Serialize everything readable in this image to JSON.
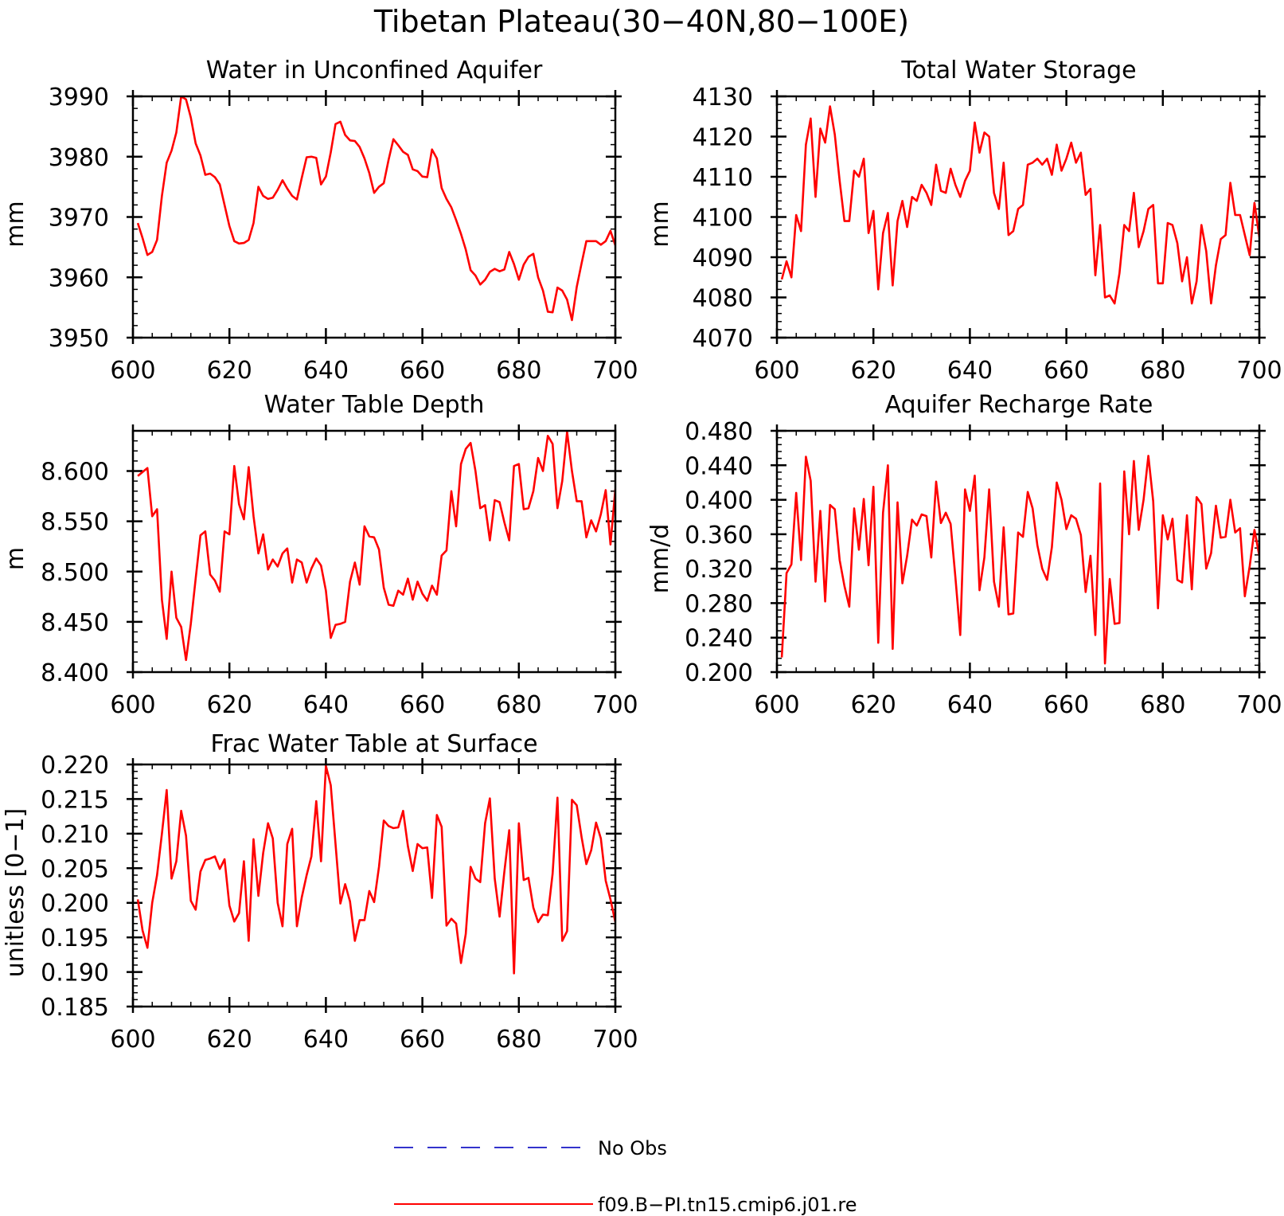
{
  "figure": {
    "title": "Tibetan Plateau(30−40N,80−100E)"
  },
  "legend": {
    "entries": [
      {
        "label": "No Obs",
        "color": "#3333cc",
        "style": "dashed"
      },
      {
        "label": "f09.B−PI.tn15.cmip6.j01.re",
        "color": "#ff0000",
        "style": "solid"
      }
    ]
  },
  "chart_data": [
    {
      "type": "line",
      "title": "Water in Unconfined Aquifer",
      "ylabel": "mm",
      "xlim": [
        600,
        700
      ],
      "ylim": [
        3950,
        3990
      ],
      "xticks": [
        600,
        620,
        640,
        660,
        680,
        700
      ],
      "yticks": [
        3950,
        3960,
        3970,
        3980,
        3990
      ],
      "ytick_labels": [
        "3950",
        "3960",
        "3970",
        "3980",
        "3990"
      ],
      "series": [
        {
          "name": "f09.B−PI.tn15.cmip6.j01.re",
          "color": "#ff0000",
          "x_start": 601,
          "values": [
            3969,
            3966.5,
            3963.7,
            3964.2,
            3966.2,
            3973.5,
            3979,
            3981,
            3984,
            3990,
            3989.5,
            3986.5,
            3982.2,
            3980.2,
            3977,
            3977.2,
            3976.6,
            3975.4,
            3972,
            3968.5,
            3966,
            3965.6,
            3965.7,
            3966.2,
            3969,
            3975,
            3973.5,
            3973,
            3973.2,
            3974.5,
            3976.1,
            3974.7,
            3973.5,
            3972.9,
            3976.5,
            3979.9,
            3980,
            3979.8,
            3975.4,
            3976.7,
            3980.7,
            3985.4,
            3985.8,
            3983.6,
            3982.7,
            3982.6,
            3981.6,
            3979.7,
            3977.3,
            3974,
            3975,
            3975.6,
            3979.5,
            3982.9,
            3981.9,
            3980.8,
            3980.3,
            3977.9,
            3977.6,
            3976.7,
            3976.6,
            3981.2,
            3979.7,
            3974.8,
            3973,
            3971.6,
            3969.5,
            3967.2,
            3964.6,
            3961.2,
            3960.3,
            3958.8,
            3959.6,
            3960.9,
            3961.4,
            3961,
            3961.3,
            3964.2,
            3962.2,
            3959.6,
            3962.1,
            3963.4,
            3963.9,
            3960,
            3957.8,
            3954.3,
            3954.2,
            3958.3,
            3957.8,
            3956.3,
            3952.9,
            3958.4,
            3962.3,
            3966,
            3966,
            3966,
            3965.4,
            3966,
            3967.7,
            3965.3
          ]
        }
      ]
    },
    {
      "type": "line",
      "title": "Total Water Storage",
      "ylabel": "mm",
      "xlim": [
        600,
        700
      ],
      "ylim": [
        4070,
        4130
      ],
      "xticks": [
        600,
        620,
        640,
        660,
        680,
        700
      ],
      "yticks": [
        4070,
        4080,
        4090,
        4100,
        4110,
        4120,
        4130
      ],
      "ytick_labels": [
        "4070",
        "4080",
        "4090",
        "4100",
        "4110",
        "4120",
        "4130"
      ],
      "series": [
        {
          "name": "f09.B−PI.tn15.cmip6.j01.re",
          "color": "#ff0000",
          "x_start": 601,
          "values": [
            4084.5,
            4089,
            4085,
            4100.5,
            4096.5,
            4118,
            4124.5,
            4105,
            4122,
            4118.5,
            4127.5,
            4120.5,
            4109,
            4099,
            4099,
            4111.5,
            4110,
            4114.5,
            4096,
            4101.5,
            4082,
            4096,
            4101,
            4083,
            4099,
            4104,
            4097.5,
            4105,
            4104,
            4108,
            4106,
            4103,
            4113,
            4106.5,
            4106,
            4112,
            4108,
            4105,
            4109,
            4111.5,
            4123.5,
            4116,
            4121,
            4120,
            4106,
            4102,
            4113.5,
            4095.5,
            4096.5,
            4102,
            4103,
            4113,
            4113.5,
            4114.5,
            4113,
            4114.5,
            4110.5,
            4118,
            4111.5,
            4114.5,
            4118.5,
            4113.5,
            4116,
            4105.5,
            4107,
            4085.5,
            4098,
            4080,
            4080.5,
            4078.5,
            4086,
            4098,
            4096.5,
            4106,
            4092.5,
            4096.5,
            4102,
            4103,
            4083.5,
            4083.5,
            4098.5,
            4098,
            4093.5,
            4084,
            4090,
            4078.5,
            4084,
            4098,
            4091.5,
            4078.5,
            4088,
            4094.5,
            4095.5,
            4108.5,
            4100.5,
            4100.5,
            4095.5,
            4090.5,
            4103.5,
            4095
          ]
        }
      ]
    },
    {
      "type": "line",
      "title": "Water Table Depth",
      "ylabel": "m",
      "xlim": [
        600,
        700
      ],
      "ylim": [
        8.4,
        8.64
      ],
      "xticks": [
        600,
        620,
        640,
        660,
        680,
        700
      ],
      "yticks": [
        8.4,
        8.45,
        8.5,
        8.55,
        8.6
      ],
      "ytick_labels": [
        "8.400",
        "8.450",
        "8.500",
        "8.550",
        "8.600"
      ],
      "series": [
        {
          "name": "f09.B−PI.tn15.cmip6.j01.re",
          "color": "#ff0000",
          "x_start": 601,
          "values": [
            8.595,
            8.599,
            8.603,
            8.555,
            8.562,
            8.472,
            8.433,
            8.5,
            8.454,
            8.445,
            8.412,
            8.448,
            8.493,
            8.536,
            8.54,
            8.497,
            8.491,
            8.48,
            8.54,
            8.537,
            8.605,
            8.567,
            8.552,
            8.604,
            8.555,
            8.518,
            8.537,
            8.502,
            8.512,
            8.505,
            8.518,
            8.523,
            8.489,
            8.512,
            8.509,
            8.489,
            8.503,
            8.513,
            8.506,
            8.481,
            8.434,
            8.447,
            8.448,
            8.45,
            8.49,
            8.509,
            8.487,
            8.545,
            8.535,
            8.534,
            8.522,
            8.484,
            8.467,
            8.466,
            8.481,
            8.477,
            8.493,
            8.472,
            8.49,
            8.478,
            8.471,
            8.486,
            8.477,
            8.516,
            8.521,
            8.58,
            8.545,
            8.607,
            8.622,
            8.628,
            8.6,
            8.563,
            8.566,
            8.531,
            8.571,
            8.569,
            8.549,
            8.531,
            8.605,
            8.607,
            8.562,
            8.563,
            8.58,
            8.613,
            8.6,
            8.635,
            8.627,
            8.563,
            8.59,
            8.639,
            8.6,
            8.57,
            8.57,
            8.534,
            8.551,
            8.54,
            8.557,
            8.581,
            8.527,
            8.582
          ]
        }
      ]
    },
    {
      "type": "line",
      "title": "Aquifer Recharge Rate",
      "ylabel": "mm/d",
      "xlim": [
        600,
        700
      ],
      "ylim": [
        0.2,
        0.48
      ],
      "xticks": [
        600,
        620,
        640,
        660,
        680,
        700
      ],
      "yticks": [
        0.2,
        0.24,
        0.28,
        0.32,
        0.36,
        0.4,
        0.44,
        0.48
      ],
      "ytick_labels": [
        "0.200",
        "0.240",
        "0.280",
        "0.320",
        "0.360",
        "0.400",
        "0.440",
        "0.480"
      ],
      "series": [
        {
          "name": "f09.B−PI.tn15.cmip6.j01.re",
          "color": "#ff0000",
          "x_start": 601,
          "values": [
            0.217,
            0.315,
            0.325,
            0.408,
            0.33,
            0.45,
            0.422,
            0.305,
            0.387,
            0.282,
            0.394,
            0.389,
            0.33,
            0.3,
            0.276,
            0.39,
            0.342,
            0.401,
            0.324,
            0.415,
            0.234,
            0.385,
            0.44,
            0.227,
            0.397,
            0.303,
            0.335,
            0.377,
            0.37,
            0.383,
            0.381,
            0.333,
            0.421,
            0.373,
            0.385,
            0.372,
            0.31,
            0.243,
            0.412,
            0.387,
            0.428,
            0.295,
            0.333,
            0.412,
            0.305,
            0.276,
            0.368,
            0.267,
            0.268,
            0.362,
            0.357,
            0.409,
            0.39,
            0.347,
            0.32,
            0.307,
            0.345,
            0.42,
            0.4,
            0.366,
            0.382,
            0.378,
            0.359,
            0.293,
            0.335,
            0.243,
            0.419,
            0.21,
            0.308,
            0.256,
            0.257,
            0.433,
            0.36,
            0.445,
            0.365,
            0.4,
            0.451,
            0.398,
            0.274,
            0.382,
            0.354,
            0.378,
            0.307,
            0.304,
            0.382,
            0.296,
            0.403,
            0.395,
            0.32,
            0.338,
            0.393,
            0.356,
            0.357,
            0.4,
            0.362,
            0.367,
            0.288,
            0.323,
            0.365,
            0.335
          ]
        }
      ]
    },
    {
      "type": "line",
      "title": "Frac Water Table at Surface",
      "ylabel": "unitless [0−1]",
      "xlim": [
        600,
        700
      ],
      "ylim": [
        0.185,
        0.22
      ],
      "xticks": [
        600,
        620,
        640,
        660,
        680,
        700
      ],
      "yticks": [
        0.185,
        0.19,
        0.195,
        0.2,
        0.205,
        0.21,
        0.215,
        0.22
      ],
      "ytick_labels": [
        "0.185",
        "0.190",
        "0.195",
        "0.200",
        "0.205",
        "0.210",
        "0.215",
        "0.220"
      ],
      "series": [
        {
          "name": "f09.B−PI.tn15.cmip6.j01.re",
          "color": "#ff0000",
          "x_start": 601,
          "values": [
            0.2005,
            0.196,
            0.1935,
            0.2,
            0.204,
            0.21,
            0.2163,
            0.2035,
            0.206,
            0.2133,
            0.2097,
            0.2003,
            0.199,
            0.2045,
            0.2062,
            0.2064,
            0.2067,
            0.2049,
            0.2063,
            0.1996,
            0.1973,
            0.1985,
            0.206,
            0.1945,
            0.2092,
            0.201,
            0.2072,
            0.2115,
            0.2093,
            0.2,
            0.1966,
            0.2085,
            0.2107,
            0.1966,
            0.2008,
            0.204,
            0.2067,
            0.2147,
            0.206,
            0.2198,
            0.217,
            0.2085,
            0.1999,
            0.2027,
            0.2002,
            0.1945,
            0.1975,
            0.1975,
            0.2017,
            0.2001,
            0.2052,
            0.2119,
            0.2111,
            0.2108,
            0.2109,
            0.2133,
            0.2082,
            0.2046,
            0.2085,
            0.2079,
            0.208,
            0.2007,
            0.2127,
            0.211,
            0.1967,
            0.1977,
            0.197,
            0.1913,
            0.1955,
            0.2052,
            0.2035,
            0.203,
            0.2115,
            0.2151,
            0.2035,
            0.198,
            0.2045,
            0.2105,
            0.1898,
            0.2115,
            0.2033,
            0.2036,
            0.1993,
            0.1972,
            0.1983,
            0.1982,
            0.2042,
            0.2152,
            0.1945,
            0.1959,
            0.2149,
            0.2141,
            0.2095,
            0.2056,
            0.2076,
            0.2116,
            0.2093,
            0.2032,
            0.2005,
            0.1972
          ]
        }
      ]
    }
  ]
}
